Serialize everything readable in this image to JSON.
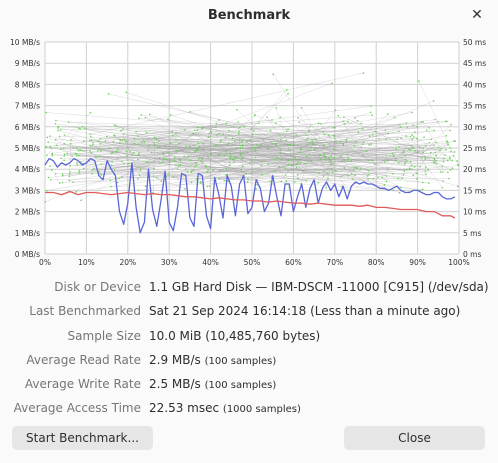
{
  "window": {
    "title": "Benchmark"
  },
  "chart_data": {
    "type": "line",
    "y_left_ticks": [
      "0 MB/s",
      "1 MB/s",
      "2 MB/s",
      "3 MB/s",
      "4 MB/s",
      "5 MB/s",
      "6 MB/s",
      "7 MB/s",
      "8 MB/s",
      "9 MB/s",
      "10 MB/s"
    ],
    "y_right_ticks": [
      "0 ms",
      "5 ms",
      "10 ms",
      "15 ms",
      "20 ms",
      "25 ms",
      "30 ms",
      "35 ms",
      "40 ms",
      "45 ms",
      "50 ms"
    ],
    "x_ticks": [
      "0%",
      "10%",
      "20%",
      "30%",
      "40%",
      "50%",
      "60%",
      "70%",
      "80%",
      "90%",
      "100%"
    ],
    "ylim_left": [
      0,
      10
    ],
    "ylim_right": [
      0,
      50
    ],
    "xlim": [
      0,
      100
    ],
    "grid": true,
    "series": [
      {
        "role": "read",
        "color": "#5a66d8",
        "x": [
          0,
          1,
          2,
          3,
          4,
          5,
          6,
          7,
          8,
          9,
          10,
          11,
          12,
          13,
          14,
          15,
          16,
          17,
          18,
          19,
          20,
          21,
          22,
          23,
          24,
          25,
          26,
          27,
          28,
          29,
          30,
          31,
          32,
          33,
          34,
          35,
          36,
          37,
          38,
          39,
          40,
          41,
          42,
          43,
          44,
          45,
          46,
          47,
          48,
          49,
          50,
          51,
          52,
          53,
          54,
          55,
          56,
          57,
          58,
          59,
          60,
          61,
          62,
          63,
          64,
          65,
          66,
          67,
          68,
          69,
          70,
          71,
          72,
          73,
          74,
          75,
          76,
          77,
          78,
          79,
          80,
          81,
          82,
          83,
          84,
          85,
          86,
          87,
          88,
          89,
          90,
          91,
          92,
          93,
          94,
          95,
          96,
          97,
          98,
          99
        ],
        "y": [
          4.2,
          4.5,
          4.4,
          4.1,
          4.3,
          4.2,
          4.3,
          4.5,
          4.4,
          4.2,
          4.3,
          4.5,
          4.4,
          3.7,
          3.5,
          4.4,
          4.0,
          3.7,
          2.0,
          1.4,
          2.4,
          4.3,
          2.2,
          1.0,
          1.5,
          4.0,
          2.1,
          1.3,
          2.5,
          3.9,
          1.5,
          1.1,
          2.2,
          3.8,
          3.7,
          1.7,
          1.3,
          3.8,
          3.7,
          1.8,
          1.2,
          3.6,
          2.8,
          1.7,
          3.7,
          3.2,
          1.8,
          3.3,
          3.7,
          1.9,
          2.2,
          3.5,
          3.1,
          2.0,
          2.4,
          3.7,
          2.7,
          1.8,
          3.3,
          3.3,
          2.0,
          2.7,
          3.3,
          2.2,
          3.1,
          3.5,
          2.4,
          3.1,
          3.4,
          3.0,
          3.3,
          2.7,
          3.2,
          2.6,
          3.2,
          3.4,
          3.3,
          3.4,
          3.3,
          3.3,
          3.2,
          3.1,
          3.1,
          3.0,
          3.1,
          3.2,
          3.0,
          2.9,
          2.9,
          3.0,
          3.0,
          2.9,
          2.8,
          2.8,
          2.9,
          2.9,
          2.7,
          2.6,
          2.6,
          2.7
        ]
      },
      {
        "role": "write",
        "color": "#e05a5a",
        "x": [
          0,
          2,
          4,
          6,
          8,
          10,
          12,
          14,
          16,
          18,
          20,
          22,
          24,
          26,
          28,
          30,
          32,
          34,
          36,
          38,
          40,
          42,
          44,
          46,
          48,
          50,
          52,
          54,
          56,
          58,
          60,
          62,
          64,
          66,
          68,
          70,
          72,
          74,
          76,
          78,
          80,
          82,
          84,
          86,
          88,
          90,
          92,
          94,
          96,
          98,
          99
        ],
        "y": [
          2.9,
          2.9,
          2.8,
          2.95,
          2.8,
          2.9,
          2.9,
          2.85,
          2.8,
          2.85,
          2.9,
          2.85,
          2.8,
          2.85,
          2.8,
          2.8,
          2.75,
          2.7,
          2.7,
          2.65,
          2.6,
          2.65,
          2.6,
          2.55,
          2.55,
          2.5,
          2.5,
          2.45,
          2.5,
          2.45,
          2.4,
          2.4,
          2.35,
          2.4,
          2.35,
          2.3,
          2.3,
          2.3,
          2.25,
          2.3,
          2.2,
          2.2,
          2.15,
          2.1,
          2.1,
          2.1,
          2.0,
          2.0,
          1.8,
          1.8,
          1.7
        ]
      }
    ]
  },
  "info": {
    "disk_label": "Disk or Device",
    "disk_value": "1.1 GB Hard Disk — IBM-DSCM -11000 [C915] (/dev/sda)",
    "last_label": "Last Benchmarked",
    "last_value": "Sat 21 Sep 2024 16:14:18 (Less than a minute ago)",
    "size_label": "Sample Size",
    "size_value": "10.0 MiB (10,485,760 bytes)",
    "read_label": "Average Read Rate",
    "read_value": "2.9 MB/s",
    "read_samples": "(100 samples)",
    "write_label": "Average Write Rate",
    "write_value": "2.5 MB/s",
    "write_samples": "(100 samples)",
    "access_label": "Average Access Time",
    "access_value": "22.53 msec",
    "access_samples": "(1000 samples)"
  },
  "buttons": {
    "start": "Start Benchmark...",
    "close": "Close"
  },
  "icons": {
    "close": "close-icon"
  }
}
